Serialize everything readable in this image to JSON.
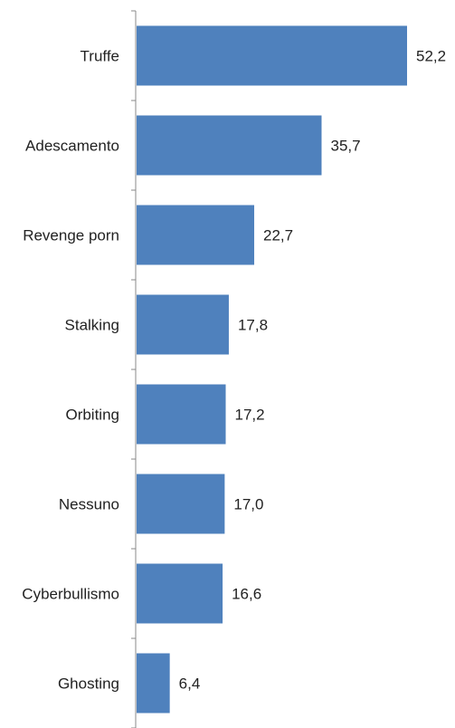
{
  "chart_data": {
    "type": "bar",
    "orientation": "horizontal",
    "categories": [
      "Truffe",
      "Adescamento",
      "Revenge porn",
      "Stalking",
      "Orbiting",
      "Nessuno",
      "Cyberbullismo",
      "Ghosting"
    ],
    "value_labels": [
      "52,2",
      "35,7",
      "22,7",
      "17,8",
      "17,2",
      "17,0",
      "16,6",
      "6,4"
    ],
    "series": [
      {
        "values": [
          52.2,
          35.7,
          22.7,
          17.8,
          17.2,
          17.0,
          16.6,
          6.4
        ]
      }
    ],
    "xlim": [
      0,
      60
    ],
    "grid": false,
    "bar_color": "#4f81bd",
    "axis_color": "#888888"
  }
}
